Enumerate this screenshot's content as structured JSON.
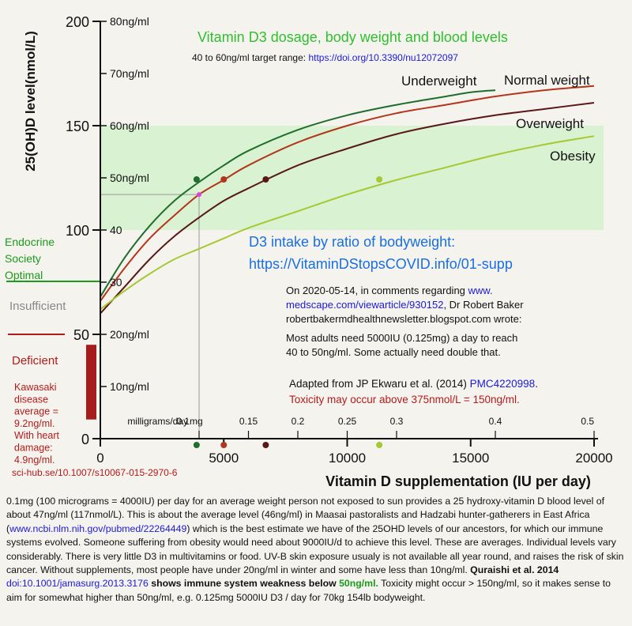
{
  "chart_data": {
    "type": "line",
    "title": "Vitamin D3 dosage, body weight and blood levels",
    "subtitle": {
      "text": "40 to 60ng/ml target range:",
      "link": "https://doi.org/10.3390/nu12072097"
    },
    "xlabel": "Vitamin D supplementation (IU per day)",
    "ylabel": "25(OH)D level(nmol/L)",
    "xlim": [
      0,
      20000
    ],
    "ylim": [
      0,
      200
    ],
    "x_ticks": [
      0,
      5000,
      10000,
      15000,
      20000
    ],
    "x_tick_labels": [
      "0",
      "5000",
      "10000",
      "15000",
      "20000"
    ],
    "y_ticks": [
      0,
      50,
      100,
      150,
      200
    ],
    "y_tick_labels": [
      "0",
      "50",
      "100",
      "150",
      "200"
    ],
    "ngml_ticks": [
      {
        "label": "80ng/ml",
        "value": 200
      },
      {
        "label": "70ng/ml",
        "value": 175
      },
      {
        "label": "60ng/ml",
        "value": 150
      },
      {
        "label": "50ng/ml",
        "value": 125
      },
      {
        "label": "40",
        "value": 100
      },
      {
        "label": "30",
        "value": 75
      },
      {
        "label": "20ng/ml",
        "value": 50
      },
      {
        "label": "10ng/ml",
        "value": 25
      }
    ],
    "mg_axis": {
      "label": "milligrams/day",
      "ticks": [
        {
          "label": "0.1mg",
          "iu": 4000
        },
        {
          "label": "0.15",
          "iu": 6000
        },
        {
          "label": "0.2",
          "iu": 8000
        },
        {
          "label": "0.25",
          "iu": 10000
        },
        {
          "label": "0.3",
          "iu": 12000
        },
        {
          "label": "0.4",
          "iu": 16000
        },
        {
          "label": "0.5",
          "iu": 20000
        }
      ]
    },
    "target_band": {
      "from": 100,
      "to": 150,
      "color": "#d9f2d2"
    },
    "reference_point": {
      "x": 4000,
      "y": 117,
      "color": "#e040e0"
    },
    "series": [
      {
        "name": "Underweight",
        "color": "#1f6e2d",
        "x": [
          0,
          1000,
          2000,
          3000,
          4000,
          5000,
          6000,
          8000,
          10000,
          12000,
          14000,
          15000,
          16000
        ],
        "y": [
          68,
          87,
          102,
          114,
          123,
          131,
          138,
          148,
          155,
          160,
          164,
          166,
          167
        ],
        "marker": {
          "x": 3900,
          "y": 125
        }
      },
      {
        "name": "Normal weight",
        "color": "#b3361b",
        "x": [
          0,
          1000,
          2000,
          3000,
          4000,
          5000,
          6000,
          8000,
          10000,
          12000,
          14000,
          16000,
          18000,
          20000
        ],
        "y": [
          66,
          82,
          96,
          107,
          117,
          124,
          131,
          142,
          150,
          156,
          160,
          164,
          167,
          169
        ],
        "marker": {
          "x": 5000,
          "y": 125
        }
      },
      {
        "name": "Overweight",
        "color": "#5a1717",
        "x": [
          0,
          1000,
          2000,
          3000,
          4000,
          5000,
          6000,
          8000,
          10000,
          12000,
          14000,
          16000,
          18000,
          20000
        ],
        "y": [
          60,
          73,
          86,
          97,
          106,
          114,
          120,
          131,
          139,
          146,
          151,
          155,
          158,
          161
        ],
        "marker": {
          "x": 6700,
          "y": 125
        }
      },
      {
        "name": "Obesity",
        "color": "#a6c832",
        "x": [
          0,
          1000,
          2000,
          3000,
          4000,
          5000,
          6000,
          8000,
          10000,
          12000,
          14000,
          16000,
          18000,
          20000
        ],
        "y": [
          62,
          71,
          79,
          86,
          91,
          96,
          101,
          109,
          117,
          124,
          130,
          136,
          141,
          145
        ],
        "marker": {
          "x": 11300,
          "y": 125
        }
      }
    ],
    "grid": false,
    "legend": "inline-labels"
  },
  "annotations": {
    "intake_title": "D3 intake by ratio of bodyweight:",
    "intake_link": "https://VitaminDStopsCOVID.info/01-supp",
    "quote_line1_pre": "On 2020-05-14, in comments regarding ",
    "quote_link1": "www.",
    "quote_link2": "medscape.com/viewarticle/930152",
    "quote_line2_post": ", Dr Robert Baker",
    "quote_line3": "robertbakermdhealthnewsletter.blogspot.com wrote:",
    "quote_line4": "Most adults need 5000IU (0.125mg) a day to reach",
    "quote_line5": "40 to 50ng/ml.  Some actually need double that.",
    "adapted_pre": "Adapted from JP Ekwaru et al. (2014) ",
    "adapted_link": "PMC4220998",
    "adapted_post": ".",
    "toxicity": "Toxicity may occur above 375nmol/L = 150ng/ml."
  },
  "left_panel": {
    "endocrine": [
      "Endocrine",
      "Society",
      "Optimal"
    ],
    "insufficient": "Insufficient",
    "deficient": "Deficient",
    "kawasaki": [
      "Kawasaki",
      "disease",
      "average =",
      "9.2ng/ml.",
      "With heart",
      "damage:",
      "4.9ng/ml.",
      "sci-hub.se/10.1007/s10067-015-2970-6"
    ],
    "colors": {
      "endocrine": "#1b9a1b",
      "insufficient": "#888888",
      "deficient": "#b31b1b"
    }
  },
  "caption": {
    "p1": "0.1mg (100 micrograms = 4000IU) per day for an average weight person not exposed to sun provides a 25 hydroxy-vitamin D blood level of about 47ng/ml (117nmol/L).  This is about the average level (46ng/ml) in Maasai pastoralists and Hadzabi hunter-gatherers in East Africa (",
    "link1": "www.ncbi.nlm.nih.gov/pubmed/22264449",
    "p2": ") which is the best estimate we have of the 25OHD levels of our ancestors, for which our immune systems evolved.  Someone suffering from obesity would need about 9000IU/d to achieve this level.  These are averages.  Individual levels vary considerably.  There is very little D3 in multivitamins or food.  UV-B skin exposure usualy is not available all year round, and raises the risk of skin cancer.  Without supplements, most people have under 20ng/ml in winter and some have less than 10ng/ml.  ",
    "bold1": "Quraishi et al. 2014",
    "link2": "doi:10.1001/jamasurg.2013.3176",
    "bold2": " shows immune system weakness below ",
    "bold_green": "50ng/ml.",
    "p3": "  Toxicity might occur > 150ng/ml, so it makes sense to aim for somewhat higher than 50ng/ml, e.g. 0.125mg 5000IU D3 / day for 70kg 154lb bodyweight."
  }
}
